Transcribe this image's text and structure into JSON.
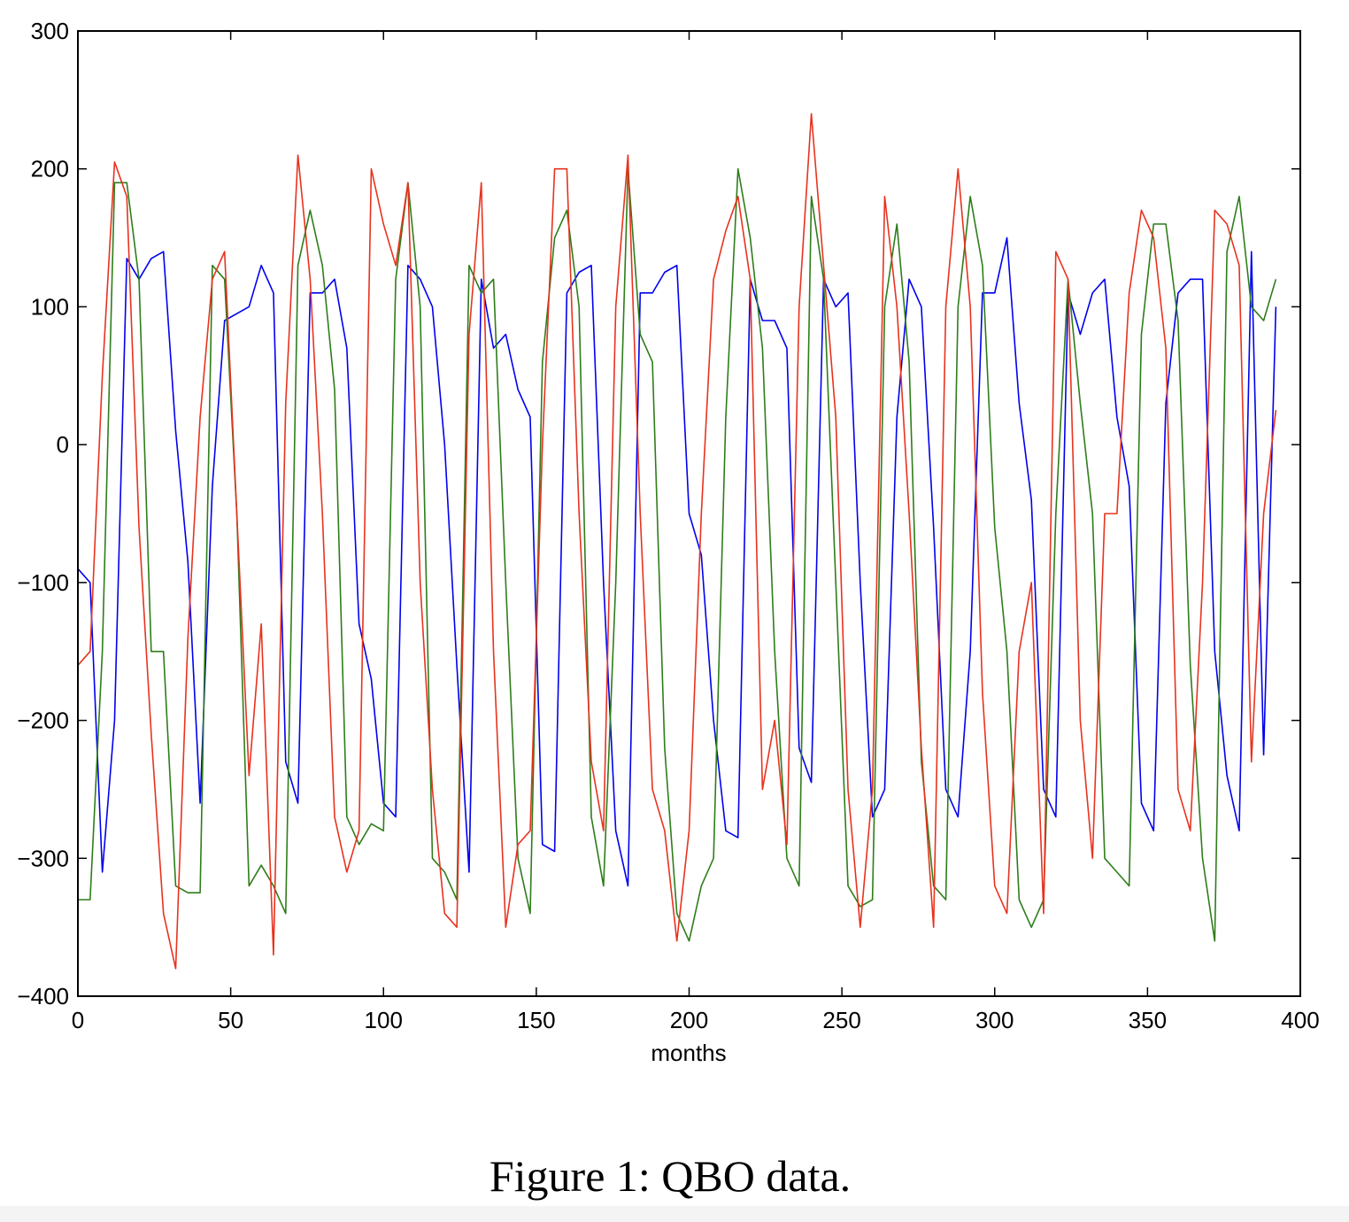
{
  "chart_data": {
    "type": "line",
    "xlabel": "months",
    "caption": "Figure 1: QBO data.",
    "xlim": [
      0,
      400
    ],
    "ylim": [
      -400,
      300
    ],
    "xticks": [
      0,
      50,
      100,
      150,
      200,
      250,
      300,
      350,
      400
    ],
    "yticks": [
      {
        "value": -400,
        "label": "−400"
      },
      {
        "value": -300,
        "label": "−300"
      },
      {
        "value": -200,
        "label": "−200"
      },
      {
        "value": -100,
        "label": "−100"
      },
      0,
      100,
      200,
      300
    ],
    "grid": false,
    "x": [
      0,
      4,
      8,
      12,
      16,
      20,
      24,
      28,
      32,
      36,
      40,
      44,
      48,
      52,
      56,
      60,
      64,
      68,
      72,
      76,
      80,
      84,
      88,
      92,
      96,
      100,
      104,
      108,
      112,
      116,
      120,
      124,
      128,
      132,
      136,
      140,
      144,
      148,
      152,
      156,
      160,
      164,
      168,
      172,
      176,
      180,
      184,
      188,
      192,
      196,
      200,
      204,
      208,
      212,
      216,
      220,
      224,
      228,
      232,
      236,
      240,
      244,
      248,
      252,
      256,
      260,
      264,
      268,
      272,
      276,
      280,
      284,
      288,
      292,
      296,
      300,
      304,
      308,
      312,
      316,
      320,
      324,
      328,
      332,
      336,
      340,
      344,
      348,
      352,
      356,
      360,
      364,
      368,
      372,
      376,
      380,
      384,
      388,
      392
    ],
    "series": [
      {
        "color": "#0000ee",
        "values": [
          -90,
          -100,
          -310,
          -200,
          135,
          120,
          135,
          140,
          10,
          -85,
          -260,
          -30,
          90,
          95,
          100,
          130,
          110,
          -230,
          -260,
          110,
          110,
          120,
          70,
          -130,
          -170,
          -260,
          -270,
          130,
          120,
          100,
          0,
          -160,
          -310,
          120,
          70,
          80,
          40,
          20,
          -290,
          -295,
          110,
          125,
          130,
          -100,
          -280,
          -320,
          110,
          110,
          125,
          130,
          -50,
          -80,
          -200,
          -280,
          -285,
          120,
          90,
          90,
          70,
          -220,
          -245,
          120,
          100,
          110,
          -100,
          -270,
          -250,
          20,
          120,
          100,
          -60,
          -250,
          -270,
          -150,
          110,
          110,
          150,
          30,
          -40,
          -250,
          -270,
          110,
          80,
          110,
          120,
          20,
          -30,
          -260,
          -280,
          30,
          110,
          120,
          120,
          -150,
          -240,
          -280,
          140,
          -225,
          100
        ]
      },
      {
        "color": "#2e7d1a",
        "values": [
          -330,
          -330,
          -150,
          190,
          190,
          120,
          -150,
          -150,
          -320,
          -325,
          -325,
          130,
          120,
          -50,
          -320,
          -305,
          -320,
          -340,
          130,
          170,
          130,
          40,
          -270,
          -290,
          -275,
          -280,
          120,
          190,
          100,
          -300,
          -310,
          -330,
          130,
          110,
          120,
          -100,
          -300,
          -340,
          60,
          150,
          170,
          100,
          -270,
          -320,
          -100,
          200,
          80,
          60,
          -220,
          -340,
          -360,
          -320,
          -300,
          20,
          200,
          150,
          70,
          -150,
          -300,
          -320,
          180,
          120,
          -100,
          -320,
          -335,
          -330,
          100,
          160,
          60,
          -230,
          -320,
          -330,
          100,
          180,
          130,
          -60,
          -150,
          -330,
          -350,
          -330,
          -50,
          120,
          30,
          -50,
          -300,
          -310,
          -320,
          80,
          160,
          160,
          90,
          -160,
          -300,
          -360,
          140,
          180,
          100,
          90,
          120
        ]
      },
      {
        "color": "#e8321e",
        "values": [
          -160,
          -150,
          50,
          205,
          180,
          -60,
          -210,
          -340,
          -380,
          -140,
          20,
          120,
          140,
          -50,
          -240,
          -130,
          -370,
          30,
          210,
          120,
          -50,
          -270,
          -310,
          -280,
          200,
          160,
          130,
          190,
          -100,
          -250,
          -340,
          -350,
          80,
          190,
          -150,
          -350,
          -290,
          -280,
          0,
          200,
          200,
          -50,
          -230,
          -280,
          100,
          210,
          -50,
          -250,
          -280,
          -360,
          -280,
          -50,
          120,
          155,
          180,
          120,
          -250,
          -200,
          -290,
          100,
          240,
          130,
          20,
          -250,
          -350,
          -250,
          180,
          100,
          -50,
          -220,
          -350,
          100,
          200,
          100,
          -180,
          -320,
          -340,
          -150,
          -100,
          -340,
          140,
          120,
          -200,
          -300,
          -50,
          -50,
          110,
          170,
          150,
          70,
          -250,
          -280,
          -100,
          170,
          160,
          130,
          -230,
          -50,
          25
        ]
      }
    ]
  }
}
